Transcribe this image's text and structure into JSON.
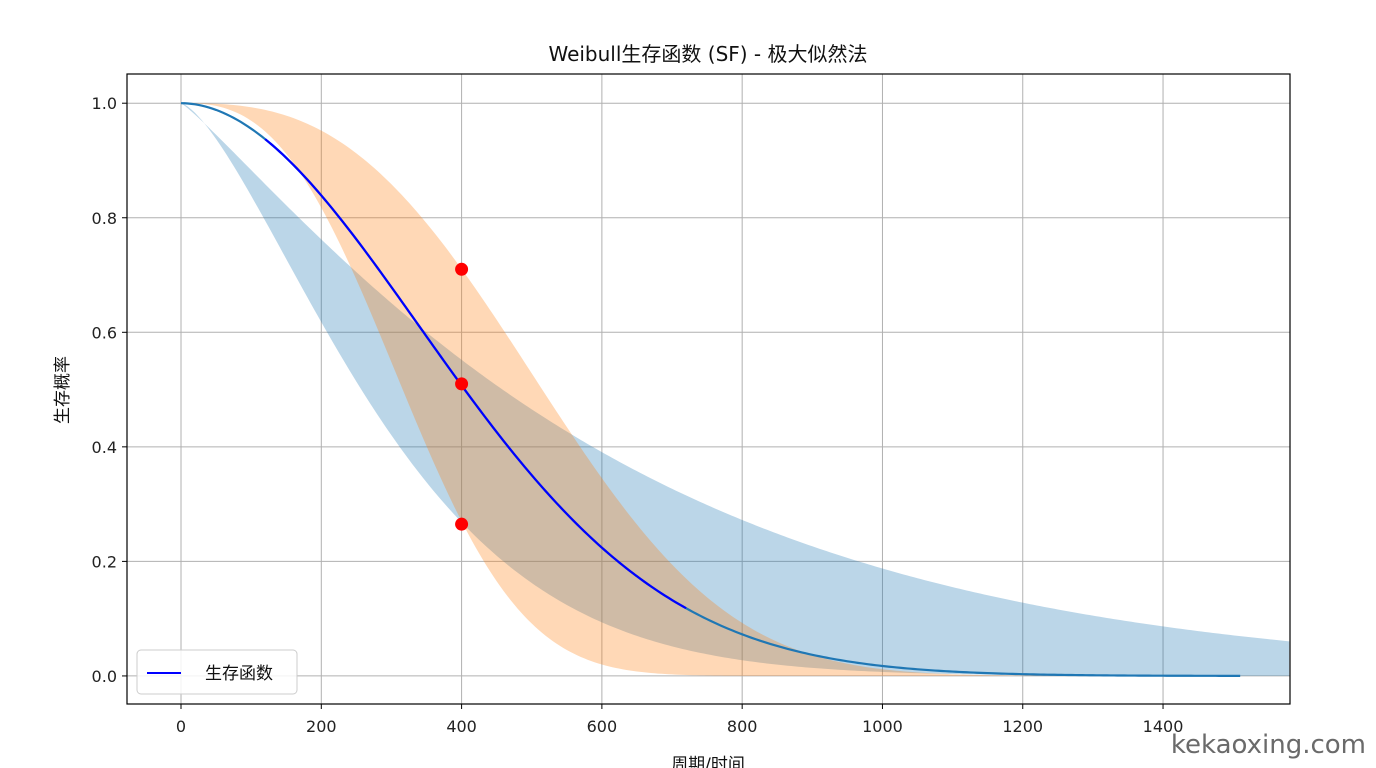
{
  "chart_data": {
    "type": "line",
    "title": "Weibull生存函数 (SF) - 极大似然法",
    "xlabel": "周期/时间",
    "ylabel": "生存概率",
    "xlim": [
      -77,
      1581
    ],
    "ylim": [
      -0.049,
      1.051
    ],
    "xticks": [
      0,
      200,
      400,
      600,
      800,
      1000,
      1200,
      1400
    ],
    "yticks": [
      0.0,
      0.2,
      0.4,
      0.6,
      0.8,
      1.0
    ],
    "ytick_labels": [
      "0.0",
      "0.2",
      "0.4",
      "0.6",
      "0.8",
      "1.0"
    ],
    "grid": true,
    "legend": {
      "position": "lower-left",
      "entries": [
        {
          "label": "生存函数",
          "color": "#0000ff"
        }
      ]
    },
    "series": [
      {
        "name": "SF (full range)",
        "model": "weibull",
        "shape": 1.95,
        "scale": 488,
        "x_range": [
          0,
          1510
        ],
        "color": "#1f77b4"
      },
      {
        "name": "生存函数",
        "model": "weibull",
        "shape": 1.95,
        "scale": 488,
        "x_range": [
          120,
          720
        ],
        "color": "#0000ff"
      }
    ],
    "bands": [
      {
        "name": "band-blue",
        "color": "#1f77b4",
        "opacity": 0.3,
        "lower": {
          "shape": 1.45,
          "scale": 331
        },
        "upper": {
          "shape": 1.13,
          "scale": 634
        }
      },
      {
        "name": "band-orange",
        "color": "#ff7f0e",
        "opacity": 0.3,
        "lower": {
          "shape": 2.7,
          "scale": 362
        },
        "upper": {
          "shape": 2.8,
          "scale": 587
        }
      }
    ],
    "points": [
      {
        "x": 400,
        "y": 0.71
      },
      {
        "x": 400,
        "y": 0.51
      },
      {
        "x": 400,
        "y": 0.265
      }
    ],
    "point_color": "#ff0000"
  },
  "watermark": "kekaoxing.com"
}
